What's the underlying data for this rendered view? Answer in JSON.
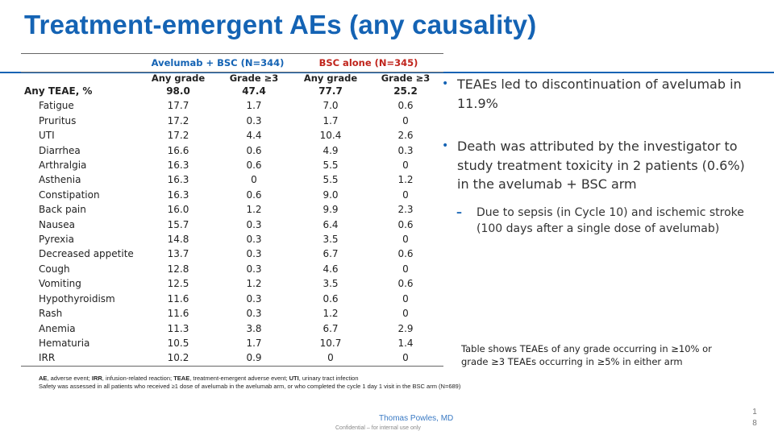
{
  "slide": {
    "title": "Treatment-emergent AEs (any causality)",
    "presenter": "Thomas Powles, MD",
    "confidential": "Confidential – for internal use only",
    "page_digit_1": "1",
    "page_digit_2": "8"
  },
  "table": {
    "group_headers": [
      {
        "label": "Avelumab + BSC (N=344)"
      },
      {
        "label": "BSC alone (N=345)"
      }
    ],
    "sub_headers": [
      "Any grade",
      "Grade ≥3",
      "Any grade",
      "Grade ≥3"
    ],
    "rows": [
      {
        "name": "Any TEAE, %",
        "vals": [
          "98.0",
          "47.4",
          "77.7",
          "25.2"
        ]
      },
      {
        "name": "Fatigue",
        "vals": [
          "17.7",
          "1.7",
          "7.0",
          "0.6"
        ]
      },
      {
        "name": "Pruritus",
        "vals": [
          "17.2",
          "0.3",
          "1.7",
          "0"
        ]
      },
      {
        "name": "UTI",
        "vals": [
          "17.2",
          "4.4",
          "10.4",
          "2.6"
        ]
      },
      {
        "name": "Diarrhea",
        "vals": [
          "16.6",
          "0.6",
          "4.9",
          "0.3"
        ]
      },
      {
        "name": "Arthralgia",
        "vals": [
          "16.3",
          "0.6",
          "5.5",
          "0"
        ]
      },
      {
        "name": "Asthenia",
        "vals": [
          "16.3",
          "0",
          "5.5",
          "1.2"
        ]
      },
      {
        "name": "Constipation",
        "vals": [
          "16.3",
          "0.6",
          "9.0",
          "0"
        ]
      },
      {
        "name": "Back pain",
        "vals": [
          "16.0",
          "1.2",
          "9.9",
          "2.3"
        ]
      },
      {
        "name": "Nausea",
        "vals": [
          "15.7",
          "0.3",
          "6.4",
          "0.6"
        ]
      },
      {
        "name": "Pyrexia",
        "vals": [
          "14.8",
          "0.3",
          "3.5",
          "0"
        ]
      },
      {
        "name": "Decreased appetite",
        "vals": [
          "13.7",
          "0.3",
          "6.7",
          "0.6"
        ]
      },
      {
        "name": "Cough",
        "vals": [
          "12.8",
          "0.3",
          "4.6",
          "0"
        ]
      },
      {
        "name": "Vomiting",
        "vals": [
          "12.5",
          "1.2",
          "3.5",
          "0.6"
        ]
      },
      {
        "name": "Hypothyroidism",
        "vals": [
          "11.6",
          "0.3",
          "0.6",
          "0"
        ]
      },
      {
        "name": "Rash",
        "vals": [
          "11.6",
          "0.3",
          "1.2",
          "0"
        ]
      },
      {
        "name": "Anemia",
        "vals": [
          "11.3",
          "3.8",
          "6.7",
          "2.9"
        ]
      },
      {
        "name": "Hematuria",
        "vals": [
          "10.5",
          "1.7",
          "10.7",
          "1.4"
        ]
      },
      {
        "name": "IRR",
        "vals": [
          "10.2",
          "0.9",
          "0",
          "0"
        ]
      }
    ]
  },
  "footnote": {
    "abbr": [
      {
        "term": "AE",
        "def": ", adverse event; "
      },
      {
        "term": "IRR",
        "def": ", infusion-related reaction; "
      },
      {
        "term": "TEAE",
        "def": ", treatment-emergent adverse event; "
      },
      {
        "term": "UTI",
        "def": ", urinary tract infection"
      }
    ],
    "line2": "Safety was assessed in all patients who received ≥1 dose of avelumab in the avelumab arm, or who completed the cycle 1 day 1 visit in the BSC arm (N=689)"
  },
  "bullets": [
    {
      "text": "TEAEs led to discontinuation of avelumab in 11.9%"
    },
    {
      "text": "Death was attributed by the investigator to study treatment toxicity in 2 patients (0.6%) in the avelumab + BSC arm"
    }
  ],
  "sub_bullet": {
    "text": "Due to sepsis (in Cycle 10) and ischemic stroke (100 days after a single dose of avelumab)"
  },
  "note": {
    "line1": "Table shows TEAEs of any grade occurring in ≥10% or",
    "line2": "grade ≥3 TEAEs occurring in ≥5% in either arm"
  },
  "colors": {
    "accent": "#1463b4",
    "bsc_header": "#c0241c"
  }
}
